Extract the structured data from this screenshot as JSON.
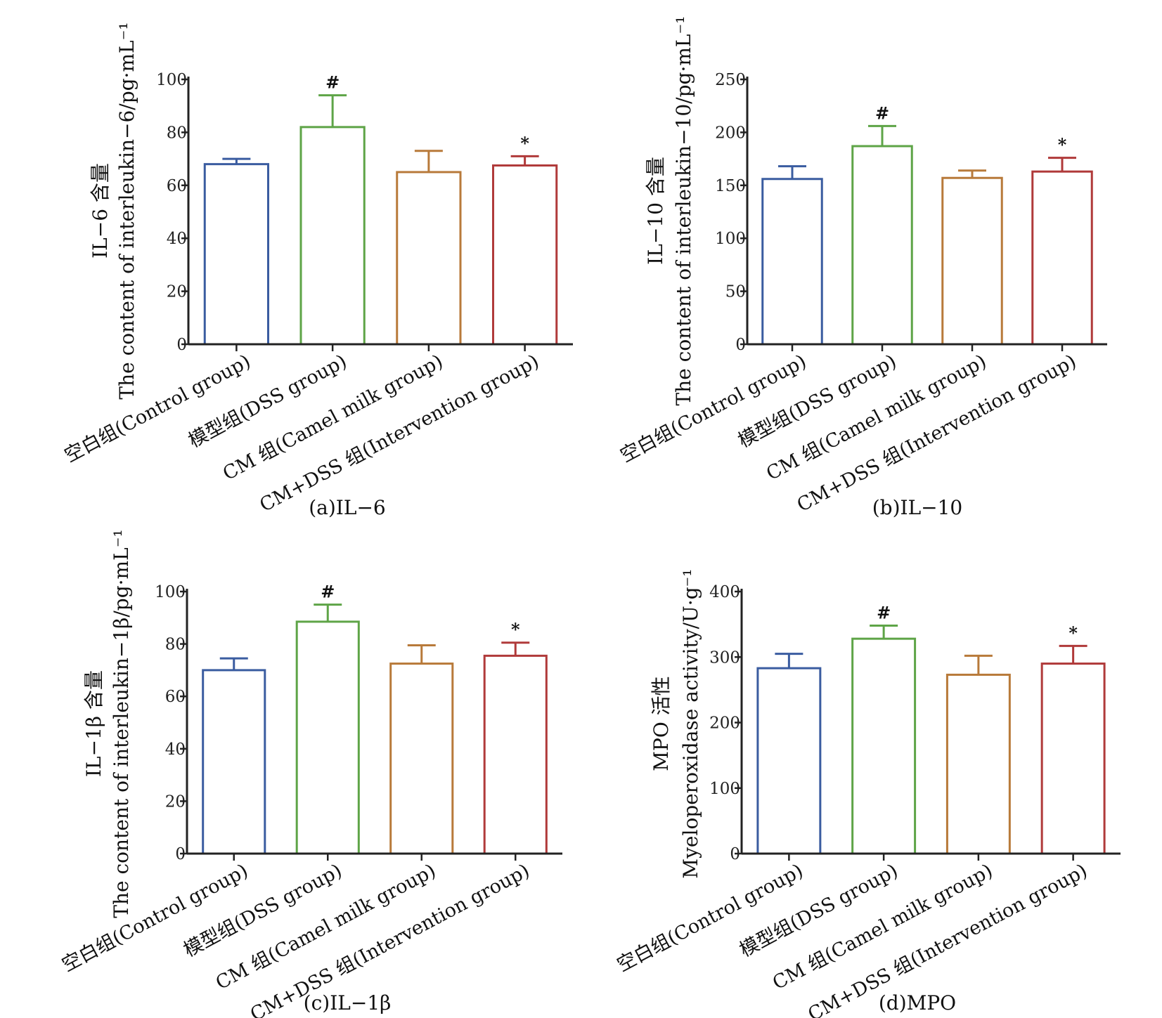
{
  "colors": {
    "control": "#3a5ca0",
    "dss": "#5ea447",
    "camel": "#b87a3a",
    "intervention": "#b03a3a",
    "axis": "#222222"
  },
  "categories": [
    "空白组(Control group)",
    "模型组(DSS group)",
    "CM 组(Camel milk group)",
    "CM+DSS 组(Intervention group)"
  ],
  "chart_data": [
    {
      "type": "bar",
      "caption": "(a)IL−6",
      "ylabel_line1": "IL−6 含量",
      "ylabel_line2": "The content of interleukin−6/pg·mL⁻¹",
      "ylim": [
        0,
        100
      ],
      "yticks": [
        0,
        20,
        40,
        60,
        80,
        100
      ],
      "values": [
        68,
        82,
        65,
        67.5
      ],
      "errors": [
        2,
        12,
        8,
        3.5
      ],
      "marks": [
        "",
        "#",
        "",
        "*"
      ]
    },
    {
      "type": "bar",
      "caption": "(b)IL−10",
      "ylabel_line1": "IL−10 含量",
      "ylabel_line2": "The content of interleukin−10/pg·mL⁻¹",
      "ylim": [
        0,
        250
      ],
      "yticks": [
        0,
        50,
        100,
        150,
        200,
        250
      ],
      "values": [
        156,
        187,
        157,
        163
      ],
      "errors": [
        12,
        19,
        7,
        13
      ],
      "marks": [
        "",
        "#",
        "",
        "*"
      ]
    },
    {
      "type": "bar",
      "caption": "(c)IL−1β",
      "ylabel_line1": "IL−1β 含量",
      "ylabel_line2": "The content of interleukin−1β/pg·mL⁻¹",
      "ylim": [
        0,
        100
      ],
      "yticks": [
        0,
        20,
        40,
        60,
        80,
        100
      ],
      "values": [
        70,
        88.5,
        72.5,
        75.5
      ],
      "errors": [
        4.5,
        6.5,
        7,
        5
      ],
      "marks": [
        "",
        "#",
        "",
        "*"
      ]
    },
    {
      "type": "bar",
      "caption": "(d)MPO",
      "ylabel_line1": "MPO 活性",
      "ylabel_line2": "Myeloperoxidase activity/U·g⁻¹",
      "ylim": [
        0,
        400
      ],
      "yticks": [
        0,
        100,
        200,
        300,
        400
      ],
      "values": [
        283,
        328,
        273,
        290
      ],
      "errors": [
        22,
        20,
        29,
        27
      ],
      "marks": [
        "",
        "#",
        "",
        "*"
      ]
    }
  ]
}
